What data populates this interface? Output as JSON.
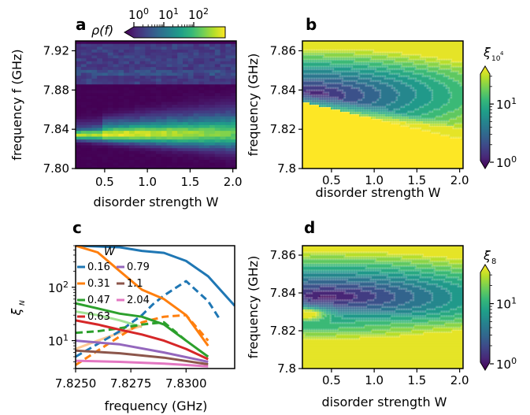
{
  "colors": {
    "viridis": [
      "#440154",
      "#482878",
      "#3e4989",
      "#31688e",
      "#26828e",
      "#1f9e89",
      "#35b779",
      "#6ece58",
      "#b5de2b",
      "#fde725"
    ],
    "ticks": "#000000",
    "contour_lines": "#ffffff",
    "series": {
      "0.16": "#1f77b4",
      "0.31": "#ff7f0e",
      "0.47": "#2ca02c",
      "0.63": "#d62728",
      "0.79": "#9467bd",
      "1.1": "#8c564b",
      "2.04": "#e377c2",
      "faded_green": "#98df8a",
      "faded_orange": "#ffbb78"
    }
  },
  "panel_a": {
    "letter": "a",
    "xlabel": "disorder strength W",
    "ylabel": "frequency f (GHz)",
    "xticks": [
      "0.5",
      "1.0",
      "1.5",
      "2.0"
    ],
    "yticks": [
      "7.92",
      "7.88",
      "7.84",
      "7.80"
    ],
    "cbar_label": "ρ(f)",
    "cbar_ticks": [
      "10",
      "10",
      "10"
    ],
    "cbar_exps": [
      "0",
      "1",
      "2"
    ]
  },
  "panel_b": {
    "letter": "b",
    "xlabel": "disorder strength W",
    "ylabel": "frequency (GHz)",
    "xticks": [
      "0.5",
      "1.0",
      "1.5",
      "2.0"
    ],
    "yticks": [
      "7.86",
      "7.84",
      "7.82",
      "7.8"
    ],
    "cbar_label": "ξ",
    "cbar_label_sub": "10",
    "cbar_label_sup": "4",
    "cbar_ticks": [
      "10",
      "10"
    ],
    "cbar_exps": [
      "1",
      "0"
    ]
  },
  "panel_c": {
    "letter": "c",
    "xlabel": "frequency (GHz)",
    "ylabel": "ξ",
    "ylabel_sub": "N",
    "xticks": [
      "7.8250",
      "7.8275",
      "7.8300"
    ],
    "yticks": [
      "10",
      "10"
    ],
    "ytick_exps": [
      "2",
      "1"
    ],
    "legend_title": "W",
    "legend": [
      {
        "label": "0.16",
        "color": "#1f77b4"
      },
      {
        "label": "0.31",
        "color": "#ff7f0e"
      },
      {
        "label": "0.47",
        "color": "#2ca02c"
      },
      {
        "label": "0.63",
        "color": "#d62728"
      },
      {
        "label": "0.79",
        "color": "#9467bd"
      },
      {
        "label": "1.1",
        "color": "#8c564b"
      },
      {
        "label": "2.04",
        "color": "#e377c2"
      }
    ]
  },
  "panel_d": {
    "letter": "d",
    "xlabel": "disorder strength W",
    "ylabel": "frequency (GHz)",
    "xticks": [
      "0.5",
      "1.0",
      "1.5",
      "2.0"
    ],
    "yticks": [
      "7.86",
      "7.84",
      "7.82",
      "7.8"
    ],
    "cbar_label": "ξ",
    "cbar_label_sub": "8",
    "cbar_ticks": [
      "10",
      "10"
    ],
    "cbar_exps": [
      "1",
      "0"
    ]
  },
  "chart_data": [
    {
      "type": "heatmap",
      "panel": "a",
      "xlabel": "disorder strength W",
      "ylabel": "frequency f (GHz)",
      "xlim": [
        0.16,
        2.04
      ],
      "ylim": [
        7.8,
        7.93
      ],
      "color_scale": "log",
      "clim": [
        1,
        200
      ],
      "colorbar_label": "ρ(f)",
      "features": [
        {
          "frequency_band": [
            7.826,
            7.842
          ],
          "W_range": [
            0.16,
            2.04
          ],
          "density": "high, broadening with W",
          "peak_at": 7.833
        },
        {
          "frequency_band": [
            7.887,
            7.928
          ],
          "W_range": [
            0.16,
            2.04
          ],
          "density": "moderate"
        }
      ]
    },
    {
      "type": "heatmap",
      "panel": "b",
      "xlabel": "disorder strength W",
      "ylabel": "frequency (GHz)",
      "xlim": [
        0.16,
        2.04
      ],
      "ylim": [
        7.8,
        7.865
      ],
      "color_scale": "log",
      "clim": [
        1,
        30
      ],
      "colorbar_label": "ξ_10^4",
      "features": [
        {
          "region": "saturated below edge",
          "edge_frequency_at_W": [
            [
              0.16,
              7.834
            ],
            [
              2.04,
              7.815
            ]
          ],
          "value": ">30"
        },
        {
          "region": "minimum",
          "center": [
            0.2,
            7.837
          ],
          "value": 1
        }
      ]
    },
    {
      "type": "line",
      "panel": "c",
      "xlabel": "frequency (GHz)",
      "ylabel": "ξ_N",
      "xlim": [
        7.825,
        7.8322
      ],
      "ylim": [
        3,
        600
      ],
      "yscale": "log",
      "series": [
        {
          "name": "0.16",
          "color": "#1f77b4",
          "style": "solid",
          "x": [
            7.825,
            7.827,
            7.828,
            7.829,
            7.83,
            7.831,
            7.8322
          ],
          "y": [
            600,
            560,
            480,
            440,
            310,
            160,
            45
          ]
        },
        {
          "name": "0.16",
          "color": "#1f77b4",
          "style": "dashed",
          "x": [
            7.825,
            7.827,
            7.828,
            7.8285,
            7.829,
            7.83,
            7.831,
            7.8315
          ],
          "y": [
            5,
            15,
            30,
            48,
            70,
            130,
            55,
            26
          ]
        },
        {
          "name": "0.31",
          "color": "#ff7f0e",
          "style": "solid",
          "x": [
            7.825,
            7.826,
            7.827,
            7.828,
            7.829,
            7.83,
            7.831
          ],
          "y": [
            600,
            450,
            200,
            90,
            60,
            30,
            8
          ]
        },
        {
          "name": "0.31",
          "color": "#ff7f0e",
          "style": "dashed",
          "x": [
            7.825,
            7.827,
            7.828,
            7.829,
            7.83,
            7.831
          ],
          "y": [
            3.5,
            12,
            22,
            28,
            30,
            10
          ]
        },
        {
          "name": "0.47",
          "color": "#2ca02c",
          "style": "solid",
          "x": [
            7.825,
            7.826,
            7.827,
            7.828,
            7.829,
            7.83,
            7.831
          ],
          "y": [
            50,
            40,
            32,
            28,
            20,
            10,
            5
          ]
        },
        {
          "name": "0.47",
          "color": "#2ca02c",
          "style": "dashed",
          "x": [
            7.825,
            7.826,
            7.827,
            7.828,
            7.829,
            7.83
          ],
          "y": [
            14,
            15,
            17,
            20,
            22,
            10
          ]
        },
        {
          "name": "0.63",
          "color": "#d62728",
          "style": "solid",
          "x": [
            7.825,
            7.826,
            7.827,
            7.828,
            7.829,
            7.83,
            7.831
          ],
          "y": [
            24,
            20,
            16,
            13,
            10,
            7,
            4.5
          ]
        },
        {
          "name": "0.79",
          "color": "#9467bd",
          "style": "solid",
          "x": [
            7.825,
            7.827,
            7.829,
            7.831
          ],
          "y": [
            10,
            8.5,
            6,
            4
          ]
        },
        {
          "name": "1.1",
          "color": "#8c564b",
          "style": "solid",
          "x": [
            7.825,
            7.827,
            7.829,
            7.831
          ],
          "y": [
            6.5,
            5.8,
            4.8,
            3.6
          ]
        },
        {
          "name": "2.04",
          "color": "#e377c2",
          "style": "solid",
          "x": [
            7.825,
            7.827,
            7.829,
            7.831
          ],
          "y": [
            4.2,
            4.0,
            3.7,
            3.3
          ]
        }
      ]
    },
    {
      "type": "heatmap",
      "panel": "d",
      "xlabel": "disorder strength W",
      "ylabel": "frequency (GHz)",
      "xlim": [
        0.16,
        2.04
      ],
      "ylim": [
        7.8,
        7.865
      ],
      "color_scale": "log",
      "clim": [
        1,
        30
      ],
      "colorbar_label": "ξ_8",
      "features": [
        {
          "region": "high values near edge",
          "center": [
            0.2,
            7.829
          ],
          "value": 30
        },
        {
          "region": "minimum",
          "center": [
            0.4,
            7.838
          ],
          "value": 1
        }
      ]
    }
  ]
}
